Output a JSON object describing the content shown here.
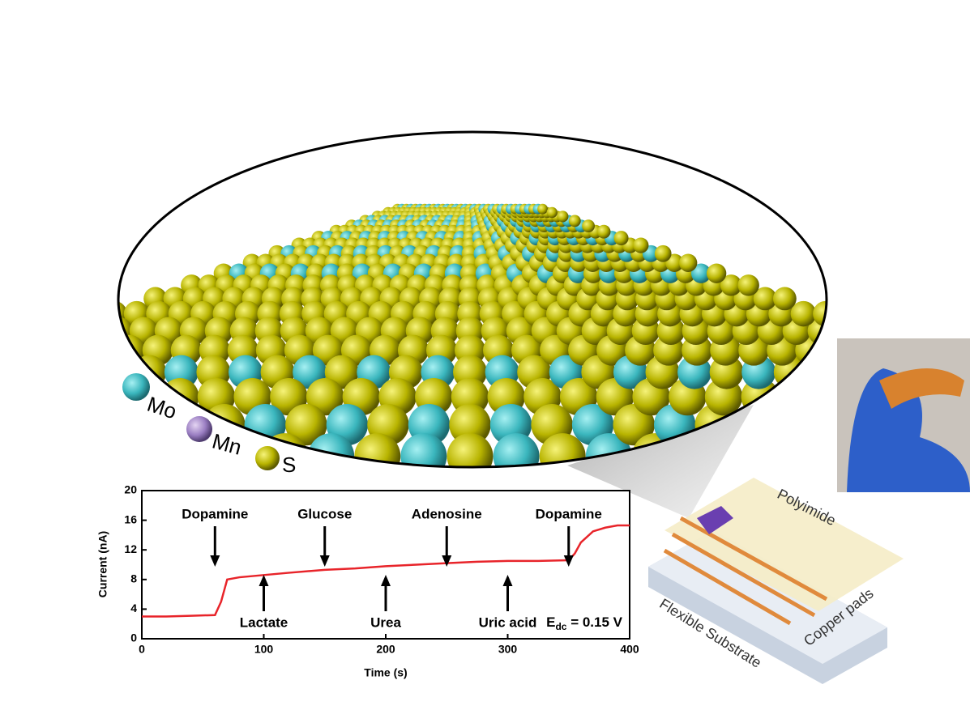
{
  "chart_data": {
    "type": "line",
    "x_label": "Time (s)",
    "y_label": "Current (nA)",
    "xlim": [
      0,
      400
    ],
    "xticks": [
      0,
      100,
      200,
      300,
      400
    ],
    "ylim": [
      0,
      20
    ],
    "yticks": [
      0,
      4,
      8,
      12,
      16,
      20
    ],
    "x": [
      0,
      20,
      40,
      60,
      65,
      70,
      80,
      100,
      120,
      150,
      175,
      200,
      225,
      250,
      275,
      300,
      325,
      350,
      355,
      360,
      370,
      380,
      390,
      400
    ],
    "series": [
      {
        "color": "#e8242a",
        "values": [
          3.0,
          3.0,
          3.1,
          3.2,
          5.0,
          8.0,
          8.3,
          8.6,
          8.9,
          9.3,
          9.5,
          9.8,
          10.0,
          10.2,
          10.4,
          10.5,
          10.5,
          10.6,
          11.5,
          13.0,
          14.5,
          15.0,
          15.3,
          15.3
        ]
      }
    ],
    "annotations": [
      {
        "text": "Dopamine",
        "x": 60,
        "direction": "down"
      },
      {
        "text": "Lactate",
        "x": 100,
        "direction": "up"
      },
      {
        "text": "Glucose",
        "x": 150,
        "direction": "down"
      },
      {
        "text": "Urea",
        "x": 200,
        "direction": "up"
      },
      {
        "text": "Adenosine",
        "x": 250,
        "direction": "down"
      },
      {
        "text": "Uric acid",
        "x": 300,
        "direction": "up"
      },
      {
        "text": "Dopamine",
        "x": 350,
        "direction": "down"
      }
    ],
    "note": {
      "main": "E",
      "sub": "dc",
      "rest": " = 0.15 V"
    }
  },
  "illustration": {
    "atoms": [
      "Mo",
      "Mn",
      "S"
    ],
    "device": {
      "top": "Polyimide",
      "pads": "Copper pads",
      "base": "Flexible Substrate"
    }
  }
}
